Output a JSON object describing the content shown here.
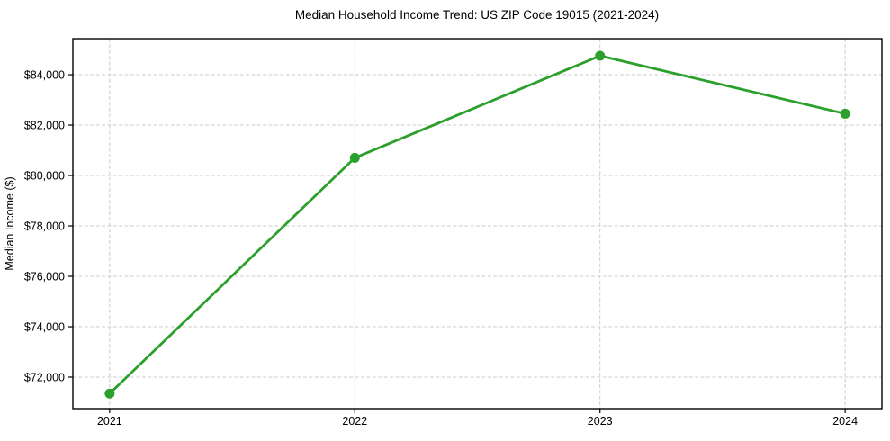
{
  "chart_data": {
    "type": "line",
    "title": "Median Household Income Trend: US ZIP Code 19015 (2021-2024)",
    "xlabel": "",
    "ylabel": "Median Income ($)",
    "categories": [
      "2021",
      "2022",
      "2023",
      "2024"
    ],
    "x": [
      2021,
      2022,
      2023,
      2024
    ],
    "series": [
      {
        "name": "Median Household Income",
        "values": [
          71350,
          80700,
          84750,
          82450
        ],
        "color": "#2ca02c",
        "marker": "circle",
        "marker_radius": 5.5
      }
    ],
    "xlim": [
      2020.85,
      2024.15
    ],
    "ylim": [
      70750,
      85430
    ],
    "yticks": [
      72000,
      74000,
      76000,
      78000,
      80000,
      82000,
      84000
    ],
    "ytick_labels": [
      "$72,000",
      "$74,000",
      "$76,000",
      "$78,000",
      "$80,000",
      "$82,000",
      "$84,000"
    ],
    "xticks": [
      2021,
      2022,
      2023,
      2024
    ],
    "xtick_labels": [
      "2021",
      "2022",
      "2023",
      "2024"
    ],
    "grid": true,
    "grid_color": "#cccccc",
    "legend": "none",
    "background_color": "#ffffff",
    "text_color": "#000000"
  }
}
